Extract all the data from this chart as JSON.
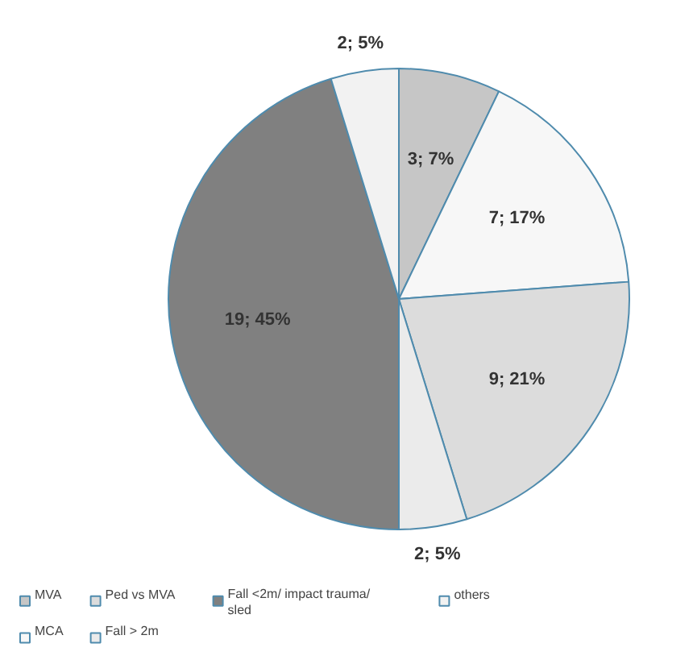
{
  "chart_data": {
    "type": "pie",
    "categories": [
      "MVA",
      "MCA",
      "Ped vs MVA",
      "Fall > 2m",
      "Fall <2m/ impact trauma/ sled",
      "others"
    ],
    "values": [
      3,
      7,
      9,
      2,
      19,
      2
    ],
    "colors": [
      "#c6c6c6",
      "#f7f7f7",
      "#dcdcdc",
      "#ebebeb",
      "#808080",
      "#f2f2f2"
    ],
    "value_labels": [
      "3; 7%",
      "7; 17%",
      "9; 21%",
      "2; 5%",
      "19; 45%",
      "2; 5%"
    ],
    "legend": "bottom"
  }
}
